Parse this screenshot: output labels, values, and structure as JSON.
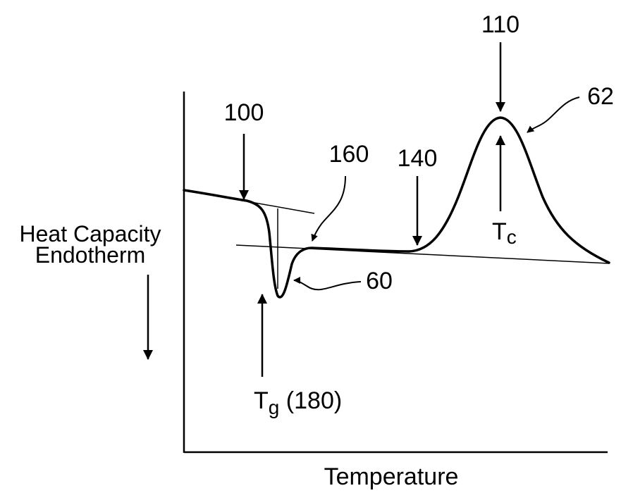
{
  "figure": {
    "x_axis_label": "Temperature",
    "y_axis_label_line1": "Heat Capacity",
    "y_axis_label_line2": "Endotherm",
    "ref_100": "100",
    "ref_110": "110",
    "ref_62": "62",
    "ref_160": "160",
    "ref_140": "140",
    "ref_60": "60",
    "tc_main": "T",
    "tc_sub": "c",
    "tg_main": "T",
    "tg_sub": "g",
    "tg_ref": " (180)"
  },
  "colors": {
    "ink": "#000000",
    "background": "#ffffff"
  }
}
